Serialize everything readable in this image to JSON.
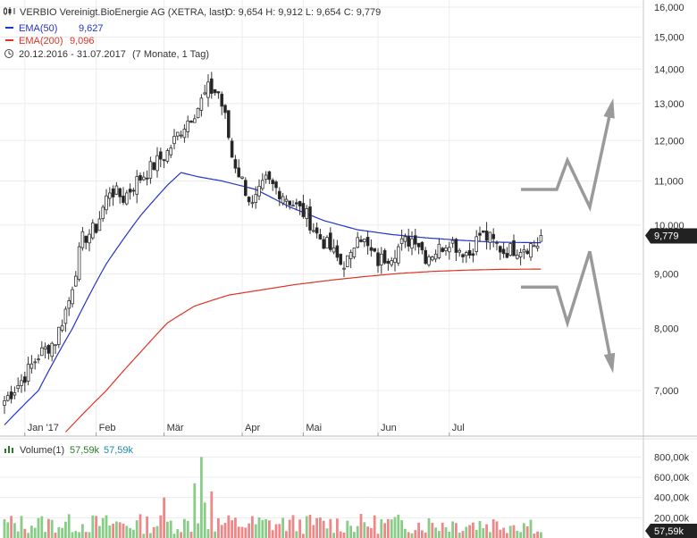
{
  "header": {
    "title": "VERBIO Vereinigt.BioEnergie AG (XETRA, last)",
    "ohlc": "O: 9,654  H: 9,912  L: 9,654  C: 9,779",
    "ema50_label": "EMA(50)",
    "ema50_value": "9,627",
    "ema200_label": "EMA(200)",
    "ema200_value": "9,096",
    "period": "20.12.2016 - 31.07.2017",
    "interval": "(7 Monate, 1 Tag)"
  },
  "volume_header": {
    "label": "Volume(1)",
    "value1": "57,59k",
    "value2": "57,59k"
  },
  "colors": {
    "up": "#2a7a2a",
    "down": "#333333",
    "ema50": "#2233cc",
    "ema200": "#dd3322",
    "vol_up": "#88cc88",
    "vol_down": "#ee8888",
    "price_badge": "#222222",
    "arrow": "#9a9a9a"
  },
  "chart_data": [
    {
      "type": "candlestick",
      "title": "VERBIO Vereinigt.BioEnergie AG (XETRA, last)",
      "y_scale": "log",
      "ylim": [
        6400,
        16300
      ],
      "y_ticks": [
        7000,
        8000,
        9000,
        10000,
        11000,
        12000,
        13000,
        14000,
        15000,
        16000
      ],
      "y_tick_labels": [
        "7,000",
        "8,000",
        "9,000",
        "10,000",
        "11,000",
        "12,000",
        "13,000",
        "14,000",
        "15,000",
        "16,000"
      ],
      "x_ticks": [
        "Jan '17",
        "Feb",
        "Mär",
        "Apr",
        "Mai",
        "Jun",
        "Jul"
      ],
      "last_price_label": "9,779",
      "grid": true,
      "series": [
        {
          "name": "EMA(50)",
          "type": "line"
        },
        {
          "name": "EMA(200)",
          "type": "line"
        }
      ],
      "close_path": [
        [
          0,
          6850
        ],
        [
          5,
          7150
        ],
        [
          10,
          7550
        ],
        [
          15,
          7800
        ],
        [
          19,
          8500
        ],
        [
          23,
          9700
        ],
        [
          27,
          9950
        ],
        [
          31,
          10800
        ],
        [
          35,
          10600
        ],
        [
          39,
          11000
        ],
        [
          43,
          11300
        ],
        [
          48,
          11700
        ],
        [
          52,
          12300
        ],
        [
          57,
          12900
        ],
        [
          60,
          13400
        ],
        [
          63,
          13300
        ],
        [
          65,
          12600
        ],
        [
          67,
          11600
        ],
        [
          70,
          11000
        ],
        [
          73,
          10400
        ],
        [
          77,
          11000
        ],
        [
          82,
          10700
        ],
        [
          86,
          10400
        ],
        [
          89,
          10200
        ],
        [
          92,
          9800
        ],
        [
          96,
          9500
        ],
        [
          99,
          9200
        ],
        [
          102,
          9300
        ],
        [
          104,
          9900
        ],
        [
          107,
          9500
        ],
        [
          110,
          9250
        ],
        [
          114,
          9400
        ],
        [
          117,
          9600
        ],
        [
          121,
          9750
        ],
        [
          124,
          9350
        ],
        [
          128,
          9500
        ],
        [
          131,
          9700
        ],
        [
          134,
          9500
        ],
        [
          137,
          9400
        ],
        [
          140,
          9800
        ],
        [
          143,
          9700
        ],
        [
          147,
          9450
        ],
        [
          150,
          9500
        ],
        [
          153,
          9550
        ],
        [
          157,
          9600
        ],
        [
          158,
          9779
        ]
      ],
      "ema50_path": [
        [
          0,
          6500
        ],
        [
          10,
          7000
        ],
        [
          20,
          8000
        ],
        [
          30,
          9200
        ],
        [
          40,
          10200
        ],
        [
          48,
          10900
        ],
        [
          52,
          11200
        ],
        [
          57,
          11100
        ],
        [
          64,
          11000
        ],
        [
          74,
          10800
        ],
        [
          84,
          10400
        ],
        [
          94,
          10100
        ],
        [
          104,
          9900
        ],
        [
          114,
          9800
        ],
        [
          124,
          9730
        ],
        [
          134,
          9680
        ],
        [
          144,
          9640
        ],
        [
          158,
          9627
        ]
      ],
      "ema200_path": [
        [
          18,
          6400
        ],
        [
          30,
          7000
        ],
        [
          40,
          7600
        ],
        [
          48,
          8100
        ],
        [
          56,
          8400
        ],
        [
          66,
          8600
        ],
        [
          76,
          8700
        ],
        [
          86,
          8800
        ],
        [
          96,
          8880
        ],
        [
          106,
          8950
        ],
        [
          116,
          9010
        ],
        [
          126,
          9050
        ],
        [
          136,
          9075
        ],
        [
          146,
          9090
        ],
        [
          158,
          9096
        ]
      ],
      "scenario_up": [
        [
          10800,
          0
        ],
        [
          10800,
          1
        ],
        [
          11500,
          2
        ],
        [
          10400,
          3
        ],
        [
          13000,
          4
        ]
      ],
      "scenario_down": [
        [
          8750,
          0
        ],
        [
          8750,
          1
        ],
        [
          8100,
          2
        ],
        [
          9450,
          3
        ],
        [
          7350,
          4
        ]
      ]
    },
    {
      "type": "bar",
      "title": "Volume(1)",
      "ylim": [
        0,
        900000
      ],
      "y_ticks": [
        200000,
        400000,
        600000,
        800000
      ],
      "y_tick_labels": [
        "200,00k",
        "400,00k",
        "600,00k",
        "800,00k"
      ],
      "last_value_label": "57,59k",
      "highlights": [
        {
          "index": 47,
          "value": 400000
        },
        {
          "index": 56,
          "value": 540000
        },
        {
          "index": 58,
          "value": 800000
        },
        {
          "index": 59,
          "value": 350000
        },
        {
          "index": 61,
          "value": 460000
        }
      ]
    }
  ]
}
